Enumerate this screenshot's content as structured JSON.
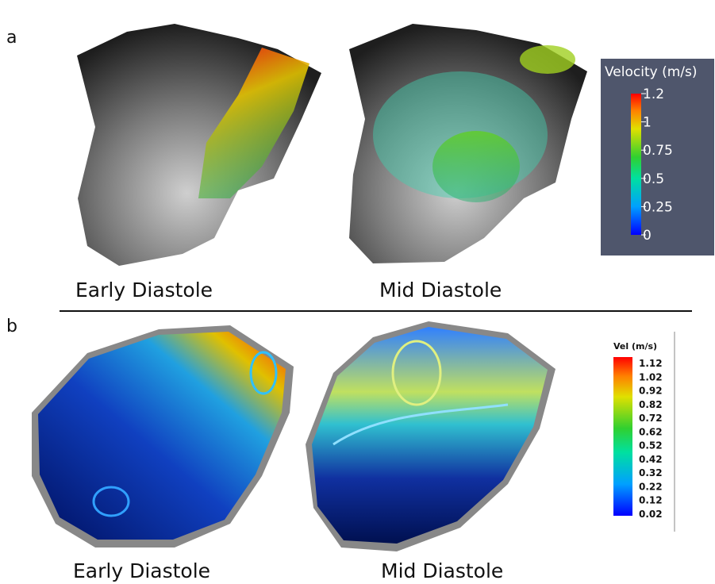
{
  "panels": [
    {
      "label": "a",
      "captions": [
        "Early Diastole",
        "Mid Diastole"
      ],
      "colorbar": {
        "title": "Velocity (m/s)",
        "ticks": [
          "1.2",
          "1",
          "0.75",
          "0.5",
          "0.25",
          "0"
        ]
      }
    },
    {
      "label": "b",
      "captions": [
        "Early Diastole",
        "Mid Diastole"
      ],
      "colorbar": {
        "title": "Vel (m/s)",
        "ticks": [
          "1.12",
          "1.02",
          "0.92",
          "0.82",
          "0.72",
          "0.62",
          "0.52",
          "0.42",
          "0.32",
          "0.22",
          "0.12",
          "0.02"
        ]
      }
    }
  ]
}
